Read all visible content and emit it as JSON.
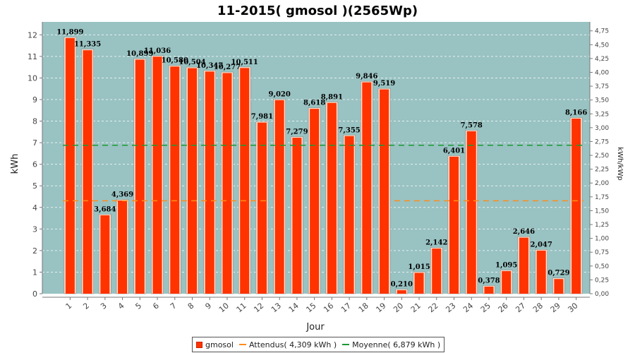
{
  "chart_data": {
    "type": "bar",
    "title": "11-2015( gmosol )(2565Wp)",
    "xlabel": "Jour",
    "ylabel": "kWh",
    "ylabel_right": "kWh/kWp",
    "ylim": [
      0,
      12.6
    ],
    "yticks": [
      "0",
      "1",
      "2",
      "3",
      "4",
      "5",
      "6",
      "7",
      "8",
      "9",
      "10",
      "11",
      "12"
    ],
    "ylim_right": [
      0,
      4.912
    ],
    "yticks_right": [
      "0,00",
      "0,25",
      "0,50",
      "0,75",
      "1,00",
      "1,25",
      "1,50",
      "1,75",
      "2,00",
      "2,25",
      "2,50",
      "2,75",
      "3,00",
      "3,25",
      "3,50",
      "3,75",
      "4,00",
      "4,25",
      "4,50",
      "4,75"
    ],
    "categories": [
      "1",
      "2",
      "3",
      "4",
      "5",
      "6",
      "7",
      "8",
      "9",
      "10",
      "11",
      "12",
      "13",
      "14",
      "15",
      "16",
      "17",
      "18",
      "19",
      "20",
      "21",
      "22",
      "23",
      "24",
      "25",
      "26",
      "27",
      "28",
      "29",
      "30"
    ],
    "series": [
      {
        "name": "gmosol",
        "color": "#ff3300",
        "values": [
          11.899,
          11.335,
          3.684,
          4.369,
          10.899,
          11.036,
          10.58,
          10.504,
          10.347,
          10.277,
          10.511,
          7.981,
          9.02,
          7.279,
          8.618,
          8.891,
          7.355,
          9.846,
          9.519,
          0.21,
          1.015,
          2.142,
          6.401,
          7.578,
          0.378,
          1.095,
          2.646,
          2.047,
          0.729,
          8.166
        ],
        "labels": [
          "11,899",
          "11,335",
          "3,684",
          "4,369",
          "10,899",
          "11,036",
          "10,580",
          "10,504",
          "10,347",
          "10,277",
          "10,511",
          "7,981",
          "9,020",
          "7,279",
          "8,618",
          "8,891",
          "7,355",
          "9,846",
          "9,519",
          "0,210",
          "1,015",
          "2,142",
          "6,401",
          "7,578",
          "0,378",
          "1,095",
          "2,646",
          "2,047",
          "0,729",
          "8,166"
        ]
      }
    ],
    "reference_lines": [
      {
        "name": "Attendus",
        "legend": "Attendus( 4,309 kWh )",
        "value": 4.309,
        "color": "#ff8c1a",
        "segments": [
          [
            1,
            12
          ],
          [
            20,
            30
          ]
        ]
      },
      {
        "name": "Moyenne",
        "legend": "Moyenne( 6,879 kWh )",
        "value": 6.879,
        "color": "#1a9933",
        "segments": [
          [
            1,
            30
          ]
        ]
      }
    ],
    "plot_background": "#99c2c2",
    "grid": true,
    "legend_position": "bottom"
  }
}
